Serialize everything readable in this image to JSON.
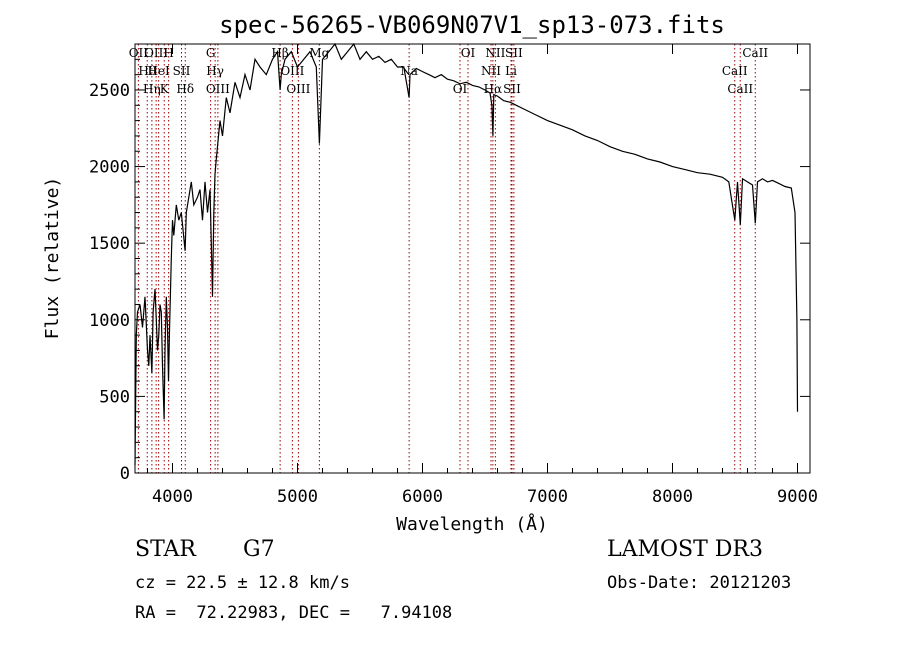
{
  "chart_data": {
    "type": "line",
    "title": "spec-56265-VB069N07V1_sp13-073.fits",
    "xlabel": "Wavelength (Å)",
    "ylabel": "Flux (relative)",
    "xlim": [
      3700,
      9100
    ],
    "ylim": [
      0,
      2800
    ],
    "x_ticks": [
      4000,
      5000,
      6000,
      7000,
      8000,
      9000
    ],
    "y_ticks": [
      0,
      500,
      1000,
      1500,
      2000,
      2500
    ],
    "series": [
      {
        "name": "flux",
        "x": [
          3700,
          3710,
          3720,
          3740,
          3760,
          3780,
          3800,
          3810,
          3820,
          3835,
          3845,
          3860,
          3870,
          3880,
          3890,
          3900,
          3910,
          3920,
          3933,
          3940,
          3950,
          3960,
          3968,
          3975,
          3990,
          4000,
          4010,
          4030,
          4050,
          4070,
          4101,
          4110,
          4130,
          4150,
          4170,
          4200,
          4220,
          4240,
          4260,
          4280,
          4300,
          4310,
          4320,
          4330,
          4340,
          4350,
          4380,
          4400,
          4430,
          4460,
          4500,
          4540,
          4580,
          4620,
          4660,
          4700,
          4750,
          4800,
          4840,
          4861,
          4870,
          4900,
          4950,
          5000,
          5050,
          5100,
          5150,
          5175,
          5200,
          5250,
          5300,
          5350,
          5400,
          5450,
          5500,
          5550,
          5600,
          5650,
          5700,
          5750,
          5800,
          5850,
          5893,
          5900,
          5950,
          6000,
          6050,
          6100,
          6150,
          6200,
          6250,
          6300,
          6350,
          6400,
          6450,
          6500,
          6540,
          6555,
          6563,
          6570,
          6600,
          6650,
          6700,
          6750,
          6800,
          6900,
          7000,
          7100,
          7200,
          7300,
          7400,
          7500,
          7600,
          7700,
          7800,
          7900,
          8000,
          8100,
          8200,
          8300,
          8400,
          8450,
          8498,
          8520,
          8542,
          8560,
          8600,
          8640,
          8662,
          8680,
          8720,
          8760,
          8800,
          8850,
          8900,
          8950,
          8980,
          8995,
          9000
        ],
        "y": [
          50,
          900,
          1050,
          1100,
          950,
          1150,
          800,
          700,
          900,
          650,
          1050,
          1200,
          1000,
          800,
          900,
          1100,
          1050,
          700,
          350,
          800,
          1150,
          950,
          600,
          900,
          1400,
          1650,
          1550,
          1750,
          1650,
          1700,
          1450,
          1700,
          1800,
          1900,
          1750,
          1800,
          1850,
          1650,
          1900,
          1700,
          1850,
          1500,
          1150,
          1700,
          1950,
          2050,
          2300,
          2200,
          2450,
          2350,
          2550,
          2450,
          2600,
          2500,
          2700,
          2650,
          2600,
          2700,
          2750,
          2500,
          2600,
          2700,
          2750,
          2650,
          2700,
          2750,
          2650,
          2150,
          2700,
          2750,
          2800,
          2700,
          2750,
          2800,
          2700,
          2750,
          2700,
          2720,
          2680,
          2700,
          2650,
          2650,
          2450,
          2600,
          2640,
          2620,
          2600,
          2580,
          2600,
          2570,
          2560,
          2540,
          2550,
          2530,
          2520,
          2500,
          2480,
          2400,
          2200,
          2470,
          2460,
          2430,
          2420,
          2400,
          2380,
          2340,
          2300,
          2270,
          2240,
          2200,
          2170,
          2130,
          2100,
          2080,
          2050,
          2030,
          2000,
          1980,
          1960,
          1950,
          1930,
          1900,
          1650,
          1900,
          1620,
          1920,
          1900,
          1880,
          1630,
          1900,
          1920,
          1900,
          1910,
          1890,
          1870,
          1860,
          1700,
          1000,
          400
        ]
      }
    ],
    "lines": [
      {
        "name": "Hθ",
        "w": 3798
      },
      {
        "name": "OII",
        "w": 3727
      },
      {
        "name": "OIII",
        "w": 3869
      },
      {
        "name": "K",
        "w": 3934
      },
      {
        "name": "HeI",
        "w": 3889
      },
      {
        "name": "Hη",
        "w": 3835
      },
      {
        "name": "SII",
        "w": 4072
      },
      {
        "name": "H",
        "w": 3969
      },
      {
        "name": "Hδ",
        "w": 4102
      },
      {
        "name": "OIII",
        "w": 4363
      },
      {
        "name": "Hγ",
        "w": 4341
      },
      {
        "name": "G",
        "w": 4305
      },
      {
        "name": "OIII",
        "w": 5007
      },
      {
        "name": "Mg",
        "w": 5175
      },
      {
        "name": "OIII",
        "w": 4959
      },
      {
        "name": "Hβ",
        "w": 4861
      },
      {
        "name": "Na",
        "w": 5893
      },
      {
        "name": "OI",
        "w": 6300
      },
      {
        "name": "OI",
        "w": 6364
      },
      {
        "name": "Hα",
        "w": 6563
      },
      {
        "name": "SII",
        "w": 6716
      },
      {
        "name": "NII",
        "w": 6548
      },
      {
        "name": "Li",
        "w": 6708
      },
      {
        "name": "NII",
        "w": 6583
      },
      {
        "name": "SII",
        "w": 6731
      },
      {
        "name": "CaII",
        "w": 8498
      },
      {
        "name": "CaII",
        "w": 8542
      },
      {
        "name": "CaII",
        "w": 8662
      }
    ]
  },
  "info": {
    "object_class": "STAR",
    "subclass": "G7",
    "survey": "LAMOST DR3",
    "cz": "cz = 22.5 ± 12.8 km/s",
    "obs_date": "Obs-Date: 20121203",
    "coords": "RA =  72.22983, DEC =   7.94108"
  }
}
